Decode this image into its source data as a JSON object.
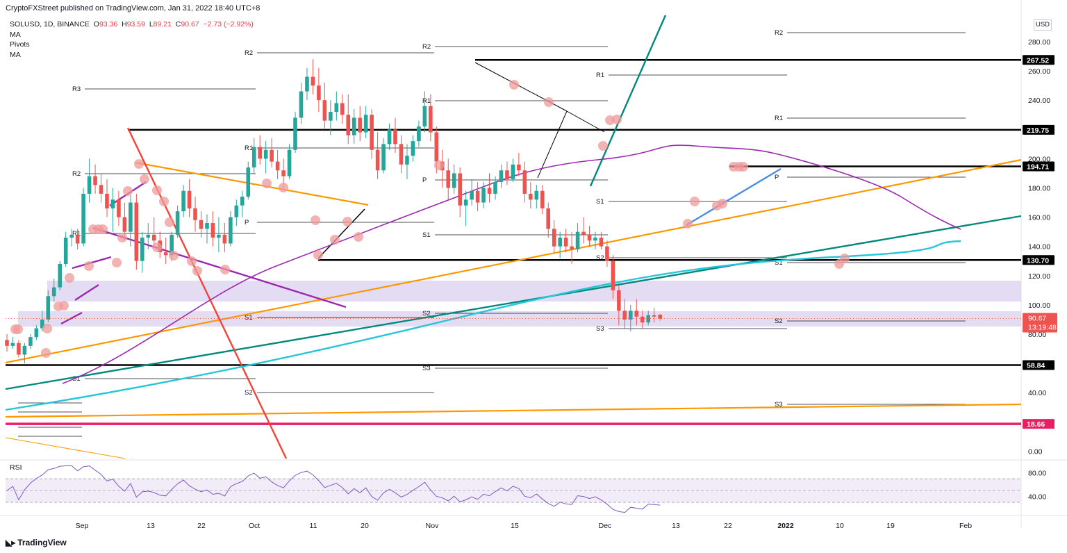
{
  "header": "CryptoFXStreet published on TradingView.com, Jan 31, 2022 18:40 UTC+8",
  "legend": {
    "symbol": "SOLUSD, 1D, BINANCE",
    "o_label": "O",
    "o": "93.36",
    "h_label": "H",
    "h": "93.59",
    "l_label": "L",
    "l": "89.21",
    "c_label": "C",
    "c": "90.67",
    "change": "−2.73 (−2.92%)",
    "indicators": [
      "MA",
      "Pivots",
      "MA"
    ]
  },
  "currency": "USD",
  "brand": "TradingView",
  "colors": {
    "up": "#26a69a",
    "down": "#ef5350",
    "ma50": "#9c27b0",
    "ma200": "#26c6da",
    "orange": "#ff9800",
    "teal": "#00897b",
    "red": "#f44336",
    "magenta": "#e91e63",
    "zone": "#d1c4e9",
    "pink_marker": "#ef9a9a"
  },
  "chart_data": {
    "type": "candlestick",
    "symbol": "SOLUSD",
    "timeframe": "1D",
    "exchange": "BINANCE",
    "y_range": [
      0,
      290
    ],
    "y_ticks": [
      "280.00",
      "260.00",
      "240.00",
      "220.00",
      "200.00",
      "180.00",
      "160.00",
      "140.00",
      "120.00",
      "100.00",
      "80.00",
      "40.00",
      "0.00"
    ],
    "y_tick_values": [
      280,
      260,
      240,
      220,
      200,
      180,
      160,
      140,
      120,
      100,
      80,
      40,
      0
    ],
    "x_labels": [
      "Sep",
      "13",
      "22",
      "Oct",
      "11",
      "20",
      "Nov",
      "15",
      "Dec",
      "13",
      "22",
      "2022",
      "10",
      "19",
      "Feb"
    ],
    "horizontal_levels": [
      {
        "label": "267.52",
        "value": 267.52
      },
      {
        "label": "219.75",
        "value": 219.75
      },
      {
        "label": "194.71",
        "value": 194.71
      },
      {
        "label": "130.70",
        "value": 130.7
      },
      {
        "label": "58.84",
        "value": 58.84
      },
      {
        "label": "18.66",
        "value": 18.66
      }
    ],
    "last_price": {
      "label": "90.67",
      "countdown": "13:19:48",
      "value": 90.67
    },
    "pivot_labels": [
      "R3",
      "R2",
      "R1",
      "P",
      "S1",
      "S2",
      "S3"
    ],
    "candles_approx": [
      [
        76,
        80,
        68,
        72
      ],
      [
        72,
        78,
        70,
        74
      ],
      [
        74,
        76,
        64,
        66
      ],
      [
        66,
        74,
        60,
        72
      ],
      [
        72,
        80,
        70,
        78
      ],
      [
        78,
        86,
        76,
        84
      ],
      [
        84,
        96,
        82,
        90
      ],
      [
        90,
        110,
        88,
        106
      ],
      [
        106,
        118,
        102,
        112
      ],
      [
        112,
        130,
        110,
        128
      ],
      [
        128,
        150,
        126,
        146
      ],
      [
        146,
        152,
        140,
        148
      ],
      [
        148,
        152,
        138,
        142
      ],
      [
        142,
        180,
        140,
        176
      ],
      [
        176,
        200,
        170,
        188
      ],
      [
        188,
        196,
        176,
        182
      ],
      [
        182,
        190,
        170,
        176
      ],
      [
        176,
        186,
        160,
        166
      ],
      [
        166,
        180,
        150,
        172
      ],
      [
        172,
        178,
        154,
        160
      ],
      [
        160,
        170,
        144,
        150
      ],
      [
        150,
        175,
        140,
        170
      ],
      [
        170,
        176,
        124,
        130
      ],
      [
        130,
        150,
        122,
        146
      ],
      [
        146,
        156,
        138,
        148
      ],
      [
        148,
        160,
        140,
        144
      ],
      [
        144,
        150,
        132,
        136
      ],
      [
        136,
        146,
        128,
        134
      ],
      [
        134,
        150,
        130,
        148
      ],
      [
        148,
        168,
        146,
        164
      ],
      [
        164,
        182,
        160,
        178
      ],
      [
        178,
        186,
        160,
        166
      ],
      [
        166,
        174,
        150,
        158
      ],
      [
        158,
        164,
        146,
        152
      ],
      [
        152,
        162,
        142,
        156
      ],
      [
        156,
        164,
        140,
        146
      ],
      [
        146,
        160,
        136,
        148
      ],
      [
        148,
        156,
        136,
        142
      ],
      [
        142,
        164,
        140,
        160
      ],
      [
        160,
        172,
        154,
        168
      ],
      [
        168,
        178,
        160,
        174
      ],
      [
        174,
        198,
        172,
        194
      ],
      [
        194,
        214,
        190,
        208
      ],
      [
        208,
        216,
        196,
        200
      ],
      [
        200,
        212,
        190,
        206
      ],
      [
        206,
        214,
        194,
        198
      ],
      [
        198,
        206,
        186,
        192
      ],
      [
        192,
        200,
        180,
        188
      ],
      [
        188,
        210,
        186,
        206
      ],
      [
        206,
        232,
        204,
        228
      ],
      [
        228,
        252,
        224,
        246
      ],
      [
        246,
        262,
        240,
        256
      ],
      [
        256,
        268,
        244,
        250
      ],
      [
        250,
        262,
        232,
        240
      ],
      [
        240,
        252,
        220,
        226
      ],
      [
        226,
        240,
        216,
        232
      ],
      [
        232,
        246,
        226,
        238
      ],
      [
        238,
        244,
        224,
        230
      ],
      [
        230,
        244,
        210,
        216
      ],
      [
        216,
        234,
        210,
        228
      ],
      [
        228,
        236,
        212,
        218
      ],
      [
        218,
        236,
        214,
        230
      ],
      [
        230,
        234,
        200,
        206
      ],
      [
        206,
        218,
        186,
        192
      ],
      [
        192,
        214,
        190,
        210
      ],
      [
        210,
        224,
        206,
        220
      ],
      [
        220,
        228,
        204,
        210
      ],
      [
        210,
        216,
        190,
        196
      ],
      [
        196,
        210,
        186,
        202
      ],
      [
        202,
        216,
        198,
        212
      ],
      [
        212,
        226,
        208,
        222
      ],
      [
        222,
        246,
        218,
        236
      ],
      [
        236,
        244,
        212,
        218
      ],
      [
        218,
        222,
        190,
        198
      ],
      [
        198,
        206,
        180,
        192
      ],
      [
        192,
        200,
        172,
        180
      ],
      [
        180,
        196,
        176,
        190
      ],
      [
        190,
        194,
        160,
        168
      ],
      [
        168,
        178,
        154,
        172
      ],
      [
        172,
        186,
        168,
        178
      ],
      [
        178,
        184,
        164,
        170
      ],
      [
        170,
        184,
        166,
        180
      ],
      [
        180,
        190,
        170,
        176
      ],
      [
        176,
        188,
        172,
        184
      ],
      [
        184,
        196,
        180,
        192
      ],
      [
        192,
        198,
        182,
        186
      ],
      [
        186,
        200,
        184,
        196
      ],
      [
        196,
        204,
        188,
        192
      ],
      [
        192,
        198,
        170,
        176
      ],
      [
        176,
        184,
        166,
        172
      ],
      [
        172,
        182,
        166,
        178
      ],
      [
        178,
        182,
        162,
        166
      ],
      [
        166,
        170,
        146,
        152
      ],
      [
        152,
        158,
        136,
        140
      ],
      [
        140,
        150,
        132,
        146
      ],
      [
        146,
        152,
        136,
        140
      ],
      [
        140,
        150,
        128,
        138
      ],
      [
        138,
        156,
        136,
        150
      ],
      [
        150,
        160,
        142,
        148
      ],
      [
        148,
        154,
        140,
        144
      ],
      [
        144,
        150,
        138,
        146
      ],
      [
        146,
        150,
        138,
        140
      ],
      [
        140,
        144,
        126,
        130
      ],
      [
        130,
        134,
        104,
        110
      ],
      [
        110,
        114,
        86,
        96
      ],
      [
        96,
        104,
        84,
        90
      ],
      [
        90,
        100,
        82,
        96
      ],
      [
        96,
        104,
        86,
        92
      ],
      [
        92,
        96,
        84,
        88
      ],
      [
        88,
        96,
        86,
        93
      ],
      [
        93,
        98,
        88,
        92
      ],
      [
        93.36,
        93.59,
        89.21,
        90.67
      ]
    ],
    "rsi": {
      "label": "RSI",
      "ticks": [
        "80.00",
        "40.00"
      ],
      "tick_values": [
        80,
        40
      ],
      "range": [
        0,
        100
      ],
      "upper": 70,
      "lower": 30
    }
  }
}
